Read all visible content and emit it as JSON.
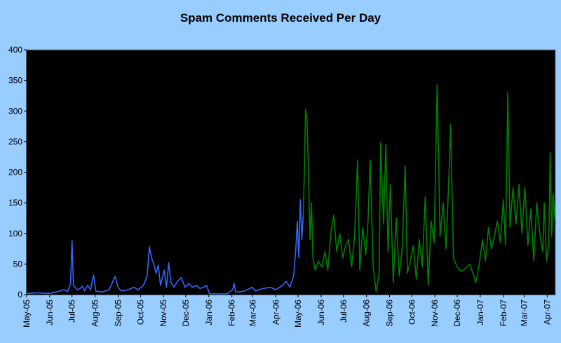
{
  "chart_data": {
    "type": "line",
    "title": "Spam Comments Received Per Day",
    "xlabel": "",
    "ylabel": "",
    "ylim": [
      0,
      400
    ],
    "yticks": [
      0,
      50,
      100,
      150,
      200,
      250,
      300,
      350,
      400
    ],
    "xlim": [
      "2005-05-01",
      "2007-04-12"
    ],
    "xticks": [
      "May-05",
      "Jun-05",
      "Jul-05",
      "Aug-05",
      "Sep-05",
      "Oct-05",
      "Nov-05",
      "Dec-05",
      "Jan-06",
      "Feb-06",
      "Mar-06",
      "Apr-06",
      "May-06",
      "Jun-06",
      "Jul-06",
      "Aug-06",
      "Sep-06",
      "Oct-06",
      "Nov-06",
      "Dec-06",
      "Jan-07",
      "Feb-07",
      "Mar-07",
      "Apr-07"
    ],
    "plot_background": "#000000",
    "grid": false,
    "legend": "none",
    "series": [
      {
        "color": "#3366ff",
        "points": [
          [
            "2005-05-01",
            2
          ],
          [
            "2005-05-15",
            3
          ],
          [
            "2005-06-01",
            2
          ],
          [
            "2005-06-12",
            5
          ],
          [
            "2005-06-20",
            8
          ],
          [
            "2005-06-25",
            5
          ],
          [
            "2005-06-29",
            18
          ],
          [
            "2005-07-01",
            88
          ],
          [
            "2005-07-03",
            15
          ],
          [
            "2005-07-08",
            8
          ],
          [
            "2005-07-12",
            10
          ],
          [
            "2005-07-15",
            14
          ],
          [
            "2005-07-18",
            6
          ],
          [
            "2005-07-22",
            15
          ],
          [
            "2005-07-26",
            8
          ],
          [
            "2005-07-30",
            32
          ],
          [
            "2005-08-02",
            6
          ],
          [
            "2005-08-10",
            4
          ],
          [
            "2005-08-20",
            8
          ],
          [
            "2005-08-28",
            30
          ],
          [
            "2005-09-01",
            12
          ],
          [
            "2005-09-05",
            6
          ],
          [
            "2005-09-15",
            8
          ],
          [
            "2005-09-22",
            12
          ],
          [
            "2005-09-28",
            8
          ],
          [
            "2005-10-05",
            15
          ],
          [
            "2005-10-10",
            30
          ],
          [
            "2005-10-13",
            78
          ],
          [
            "2005-10-16",
            60
          ],
          [
            "2005-10-19",
            50
          ],
          [
            "2005-10-22",
            35
          ],
          [
            "2005-10-25",
            48
          ],
          [
            "2005-10-28",
            15
          ],
          [
            "2005-11-02",
            40
          ],
          [
            "2005-11-05",
            12
          ],
          [
            "2005-11-08",
            52
          ],
          [
            "2005-11-11",
            20
          ],
          [
            "2005-11-15",
            12
          ],
          [
            "2005-11-20",
            22
          ],
          [
            "2005-11-25",
            28
          ],
          [
            "2005-11-30",
            12
          ],
          [
            "2005-12-05",
            18
          ],
          [
            "2005-12-10",
            12
          ],
          [
            "2005-12-15",
            15
          ],
          [
            "2005-12-20",
            10
          ],
          [
            "2005-12-25",
            12
          ],
          [
            "2005-12-29",
            15
          ],
          [
            "2006-01-02",
            1
          ],
          [
            "2006-01-15",
            1
          ],
          [
            "2006-01-25",
            1
          ],
          [
            "2006-02-02",
            8
          ],
          [
            "2006-02-04",
            18
          ],
          [
            "2006-02-06",
            4
          ],
          [
            "2006-02-15",
            5
          ],
          [
            "2006-02-22",
            8
          ],
          [
            "2006-02-28",
            12
          ],
          [
            "2006-03-05",
            6
          ],
          [
            "2006-03-15",
            10
          ],
          [
            "2006-03-25",
            12
          ],
          [
            "2006-04-01",
            8
          ],
          [
            "2006-04-10",
            15
          ],
          [
            "2006-04-15",
            22
          ],
          [
            "2006-04-20",
            12
          ],
          [
            "2006-04-25",
            30
          ],
          [
            "2006-04-28",
            75
          ],
          [
            "2006-04-30",
            120
          ],
          [
            "2006-05-02",
            60
          ],
          [
            "2006-05-04",
            155
          ],
          [
            "2006-05-06",
            90
          ],
          [
            "2006-05-08",
            130
          ]
        ]
      },
      {
        "color": "#008000",
        "points": [
          [
            "2006-05-08",
            130
          ],
          [
            "2006-05-10",
            230
          ],
          [
            "2006-05-11",
            303
          ],
          [
            "2006-05-13",
            285
          ],
          [
            "2006-05-15",
            200
          ],
          [
            "2006-05-17",
            90
          ],
          [
            "2006-05-19",
            150
          ],
          [
            "2006-05-21",
            60
          ],
          [
            "2006-05-24",
            40
          ],
          [
            "2006-05-28",
            55
          ],
          [
            "2006-06-02",
            45
          ],
          [
            "2006-06-06",
            70
          ],
          [
            "2006-06-10",
            40
          ],
          [
            "2006-06-14",
            100
          ],
          [
            "2006-06-18",
            130
          ],
          [
            "2006-06-22",
            70
          ],
          [
            "2006-06-26",
            100
          ],
          [
            "2006-06-30",
            60
          ],
          [
            "2006-07-04",
            80
          ],
          [
            "2006-07-08",
            90
          ],
          [
            "2006-07-12",
            45
          ],
          [
            "2006-07-16",
            95
          ],
          [
            "2006-07-20",
            220
          ],
          [
            "2006-07-23",
            40
          ],
          [
            "2006-07-27",
            110
          ],
          [
            "2006-07-31",
            65
          ],
          [
            "2006-08-03",
            120
          ],
          [
            "2006-08-06",
            220
          ],
          [
            "2006-08-10",
            45
          ],
          [
            "2006-08-14",
            5
          ],
          [
            "2006-08-18",
            35
          ],
          [
            "2006-08-20",
            248
          ],
          [
            "2006-08-24",
            115
          ],
          [
            "2006-08-27",
            245
          ],
          [
            "2006-08-30",
            70
          ],
          [
            "2006-09-02",
            180
          ],
          [
            "2006-09-06",
            20
          ],
          [
            "2006-09-10",
            125
          ],
          [
            "2006-09-14",
            30
          ],
          [
            "2006-09-18",
            75
          ],
          [
            "2006-09-22",
            210
          ],
          [
            "2006-09-25",
            35
          ],
          [
            "2006-09-29",
            55
          ],
          [
            "2006-10-03",
            80
          ],
          [
            "2006-10-07",
            25
          ],
          [
            "2006-10-11",
            90
          ],
          [
            "2006-10-15",
            45
          ],
          [
            "2006-10-19",
            160
          ],
          [
            "2006-10-23",
            15
          ],
          [
            "2006-10-27",
            120
          ],
          [
            "2006-10-31",
            85
          ],
          [
            "2006-11-04",
            343
          ],
          [
            "2006-11-08",
            95
          ],
          [
            "2006-11-12",
            150
          ],
          [
            "2006-11-16",
            75
          ],
          [
            "2006-11-20",
            200
          ],
          [
            "2006-11-22",
            279
          ],
          [
            "2006-11-26",
            60
          ],
          [
            "2006-12-01",
            45
          ],
          [
            "2006-12-06",
            38
          ],
          [
            "2006-12-12",
            42
          ],
          [
            "2006-12-18",
            50
          ],
          [
            "2006-12-22",
            35
          ],
          [
            "2006-12-26",
            20
          ],
          [
            "2006-12-30",
            45
          ],
          [
            "2007-01-04",
            90
          ],
          [
            "2007-01-08",
            55
          ],
          [
            "2007-01-12",
            110
          ],
          [
            "2007-01-16",
            75
          ],
          [
            "2007-01-20",
            95
          ],
          [
            "2007-01-24",
            120
          ],
          [
            "2007-01-28",
            85
          ],
          [
            "2007-02-01",
            155
          ],
          [
            "2007-02-04",
            80
          ],
          [
            "2007-02-07",
            330
          ],
          [
            "2007-02-10",
            110
          ],
          [
            "2007-02-14",
            175
          ],
          [
            "2007-02-18",
            115
          ],
          [
            "2007-02-22",
            180
          ],
          [
            "2007-02-26",
            100
          ],
          [
            "2007-03-02",
            175
          ],
          [
            "2007-03-06",
            80
          ],
          [
            "2007-03-10",
            140
          ],
          [
            "2007-03-14",
            55
          ],
          [
            "2007-03-18",
            150
          ],
          [
            "2007-03-22",
            100
          ],
          [
            "2007-03-26",
            70
          ],
          [
            "2007-03-28",
            150
          ],
          [
            "2007-03-31",
            55
          ],
          [
            "2007-04-03",
            80
          ],
          [
            "2007-04-05",
            232
          ],
          [
            "2007-04-07",
            95
          ],
          [
            "2007-04-09",
            165
          ],
          [
            "2007-04-12",
            115
          ]
        ]
      }
    ]
  }
}
